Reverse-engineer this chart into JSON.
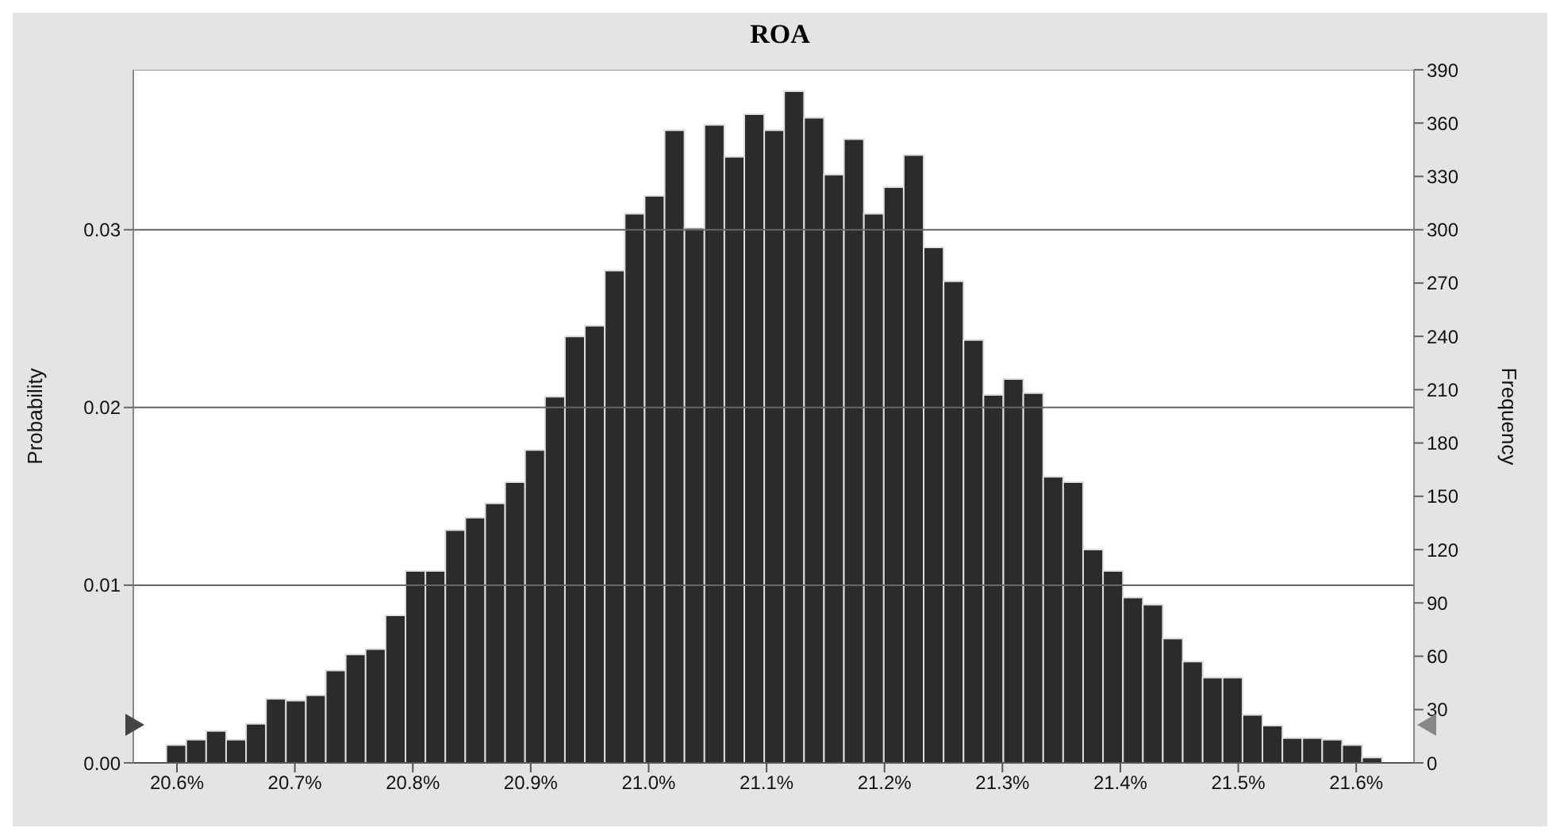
{
  "chart_data": {
    "type": "histogram",
    "title": "ROA",
    "ylabel": "Probability",
    "y2label": "Frequency",
    "color": "#2b2b2b",
    "bins": [
      20.591,
      20.6079,
      20.6248,
      20.6417,
      20.6586,
      20.6755,
      20.6924,
      20.7093,
      20.7262,
      20.7431,
      20.76,
      20.7769,
      20.7938,
      20.8107,
      20.8276,
      20.8445,
      20.8614,
      20.8783,
      20.8952,
      20.9121,
      20.929,
      20.9459,
      20.9628,
      20.9797,
      20.9966,
      21.0135,
      21.0304,
      21.0473,
      21.0642,
      21.0811,
      21.098,
      21.1149,
      21.1318,
      21.1487,
      21.1656,
      21.1825,
      21.1994,
      21.2163,
      21.2332,
      21.2501,
      21.267,
      21.2839,
      21.3008,
      21.3177,
      21.3346,
      21.3515,
      21.3684,
      21.3853,
      21.4022,
      21.4191,
      21.436,
      21.4529,
      21.4698,
      21.4867,
      21.5036,
      21.5205,
      21.5374,
      21.5543,
      21.5712,
      21.5881,
      21.605,
      21.6219
    ],
    "values": [
      0.001,
      0.0013,
      0.0018,
      0.0013,
      0.0022,
      0.0036,
      0.0035,
      0.0038,
      0.0052,
      0.0061,
      0.0064,
      0.0083,
      0.0108,
      0.0108,
      0.0131,
      0.0138,
      0.0146,
      0.0158,
      0.0176,
      0.0206,
      0.024,
      0.0246,
      0.0277,
      0.0309,
      0.0319,
      0.0356,
      0.0301,
      0.0359,
      0.0341,
      0.0365,
      0.0356,
      0.0378,
      0.0363,
      0.0331,
      0.0351,
      0.0309,
      0.0324,
      0.0342,
      0.029,
      0.0271,
      0.0238,
      0.0207,
      0.0216,
      0.0208,
      0.0161,
      0.0158,
      0.012,
      0.0108,
      0.0093,
      0.0089,
      0.007,
      0.0057,
      0.0048,
      0.0048,
      0.0027,
      0.0021,
      0.0014,
      0.0014,
      0.0013,
      0.001,
      0.0003
    ],
    "xlim": [
      20.563,
      21.649
    ],
    "xticks": [
      {
        "value": 20.6,
        "label": "20.6%"
      },
      {
        "value": 20.7,
        "label": "20.7%"
      },
      {
        "value": 20.8,
        "label": "20.8%"
      },
      {
        "value": 20.9,
        "label": "20.9%"
      },
      {
        "value": 21.0,
        "label": "21.0%"
      },
      {
        "value": 21.1,
        "label": "21.1%"
      },
      {
        "value": 21.2,
        "label": "21.2%"
      },
      {
        "value": 21.3,
        "label": "21.3%"
      },
      {
        "value": 21.4,
        "label": "21.4%"
      },
      {
        "value": 21.5,
        "label": "21.5%"
      },
      {
        "value": 21.6,
        "label": "21.6%"
      }
    ],
    "ylim": [
      0,
      0.039
    ],
    "yticks": [
      {
        "value": 0,
        "label": "0.00"
      },
      {
        "value": 0.01,
        "label": "0.01"
      },
      {
        "value": 0.02,
        "label": "0.02"
      },
      {
        "value": 0.03,
        "label": "0.03"
      }
    ],
    "y2lim": [
      0,
      390
    ],
    "y2ticks": [
      0,
      30,
      60,
      90,
      120,
      150,
      180,
      210,
      240,
      270,
      300,
      330,
      360,
      390
    ],
    "grid": "y"
  }
}
